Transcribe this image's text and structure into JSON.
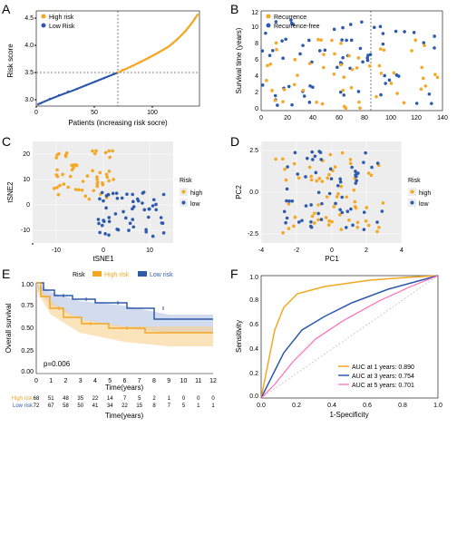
{
  "colors": {
    "high": "#f5a623",
    "low": "#2e5aac",
    "bg": "#ededed",
    "panel_bg": "#ffffff",
    "grid": "#cccccc",
    "pink": "#ff69b4",
    "ci_high": "#f8d090",
    "ci_low": "#a8b8e0"
  },
  "panels": {
    "A": {
      "label": "A",
      "xlabel": "Patients (increasing risk socre)",
      "ylabel": "Risk score",
      "legend": [
        "High risk",
        "Low Risk"
      ],
      "xlim": [
        0,
        140
      ],
      "ylim": [
        2.8,
        4.5
      ],
      "xticks": [
        0,
        50,
        100
      ],
      "yticks": [
        3.0,
        3.5,
        4.0,
        4.5
      ],
      "cutoff_x": 70,
      "cutoff_y": 3.5
    },
    "B": {
      "label": "B",
      "xlabel": "",
      "ylabel": "Survival time (years)",
      "legend": [
        "Recurrence",
        "Recurrence-free"
      ],
      "xlim": [
        0,
        140
      ],
      "ylim": [
        0,
        12
      ],
      "xticks": [
        0,
        20,
        40,
        60,
        80,
        100,
        120,
        140
      ],
      "yticks": [
        0,
        2,
        4,
        6,
        8,
        10,
        12
      ],
      "cutoff_x": 85
    },
    "C": {
      "label": "C",
      "xlabel": "tSNE1",
      "ylabel": "tSNE2",
      "legend_title": "Risk",
      "legend": [
        "high",
        "low"
      ],
      "xlim": [
        -15,
        15
      ],
      "ylim": [
        -20,
        20
      ],
      "xticks": [
        -10,
        0,
        10
      ],
      "yticks": [
        -20,
        -10,
        0,
        10,
        20
      ]
    },
    "D": {
      "label": "D",
      "xlabel": "PC1",
      "ylabel": "PC2",
      "legend_title": "Risk",
      "legend": [
        "high",
        "low"
      ],
      "xlim": [
        -4,
        4
      ],
      "ylim": [
        -3,
        3
      ],
      "xticks": [
        -4,
        -2,
        0,
        2,
        4
      ],
      "yticks": [
        -2.5,
        0.0,
        2.5
      ]
    },
    "E": {
      "label": "E",
      "xlabel": "Time(years)",
      "ylabel": "Overall survival",
      "legend_title": "Risk",
      "legend": [
        "High risk",
        "Low risk"
      ],
      "pvalue": "p=0.006",
      "xlim": [
        0,
        12
      ],
      "ylim": [
        0,
        1
      ],
      "xticks": [
        0,
        1,
        2,
        3,
        4,
        5,
        6,
        7,
        8,
        9,
        10,
        11,
        12
      ],
      "yticks": [
        0.0,
        0.25,
        0.5,
        0.75,
        1.0
      ],
      "risk_table": {
        "rows": [
          "High risk",
          "Low risk"
        ],
        "high": [
          68,
          51,
          48,
          35,
          22,
          14,
          7,
          5,
          2,
          1,
          0,
          0,
          0
        ],
        "low": [
          72,
          67,
          58,
          50,
          41,
          34,
          22,
          15,
          8,
          7,
          5,
          1,
          1
        ]
      }
    },
    "F": {
      "label": "F",
      "xlabel": "1-Specificity",
      "ylabel": "Sensitivity",
      "xlim": [
        0,
        1
      ],
      "ylim": [
        0,
        1
      ],
      "xticks": [
        0.0,
        0.2,
        0.4,
        0.6,
        0.8,
        1.0
      ],
      "yticks": [
        0.0,
        0.2,
        0.4,
        0.6,
        0.8,
        1.0
      ],
      "legend": [
        "AUC at 1 years: 0.890",
        "AUC at 3 years: 0.754",
        "AUC at 5 years: 0.701"
      ]
    }
  }
}
